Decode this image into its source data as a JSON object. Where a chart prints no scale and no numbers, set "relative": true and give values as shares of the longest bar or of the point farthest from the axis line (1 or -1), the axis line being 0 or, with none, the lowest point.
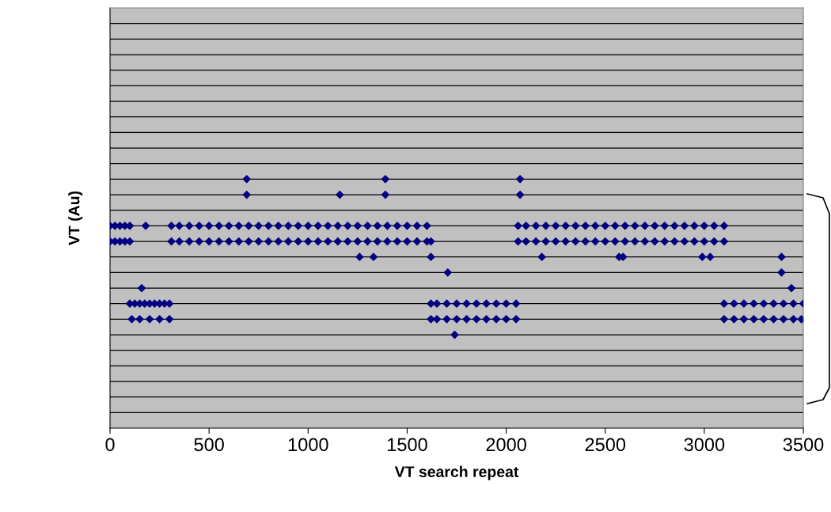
{
  "chart_data": {
    "type": "scatter",
    "xlabel": "VT search repeat",
    "ylabel": "VT (Au)",
    "relative": true,
    "xlim": [
      0,
      3500
    ],
    "xticks": [
      0,
      500,
      1000,
      1500,
      2000,
      2500,
      3000,
      3500
    ],
    "grid": "y",
    "marker": "diamond",
    "series": [
      {
        "color": "#000080",
        "x": [
          0,
          25,
          50,
          75,
          100,
          180,
          310,
          350,
          400,
          450,
          500,
          550,
          600,
          650,
          700,
          750,
          800,
          850,
          900,
          950,
          1000,
          1050,
          1100,
          1150,
          1200,
          1250,
          1300,
          1350,
          1400,
          1450,
          1500,
          1550,
          1600,
          2060,
          2100,
          2150,
          2200,
          2250,
          2300,
          2350,
          2400,
          2450,
          2500,
          2550,
          2600,
          2650,
          2700,
          2750,
          2800,
          2850,
          2900,
          2950,
          3000,
          3050,
          3100
        ],
        "values": [
          0.8125,
          0.8125,
          0.8125,
          0.8125,
          0.8125,
          0.8125,
          0.8125,
          0.8125,
          0.8125,
          0.8125,
          0.8125,
          0.8125,
          0.8125,
          0.8125,
          0.8125,
          0.8125,
          0.8125,
          0.8125,
          0.8125,
          0.8125,
          0.8125,
          0.8125,
          0.8125,
          0.8125,
          0.8125,
          0.8125,
          0.8125,
          0.8125,
          0.8125,
          0.8125,
          0.8125,
          0.8125,
          0.8125,
          0.8125,
          0.8125,
          0.8125,
          0.8125,
          0.8125,
          0.8125,
          0.8125,
          0.8125,
          0.8125,
          0.8125,
          0.8125,
          0.8125,
          0.8125,
          0.8125,
          0.8125,
          0.8125,
          0.8125,
          0.8125,
          0.8125,
          0.8125,
          0.8125,
          0.8125
        ]
      },
      {
        "color": "#000080",
        "x": [
          0,
          25,
          50,
          75,
          100,
          310,
          350,
          400,
          450,
          500,
          550,
          600,
          650,
          700,
          750,
          800,
          850,
          900,
          950,
          1000,
          1050,
          1100,
          1150,
          1200,
          1250,
          1300,
          1350,
          1400,
          1450,
          1500,
          1550,
          1600,
          1620,
          2060,
          2100,
          2150,
          2200,
          2250,
          2300,
          2350,
          2400,
          2450,
          2500,
          2550,
          2600,
          2650,
          2700,
          2750,
          2800,
          2850,
          2900,
          2950,
          3000,
          3050,
          3100
        ],
        "values": [
          0.75,
          0.75,
          0.75,
          0.75,
          0.75,
          0.75,
          0.75,
          0.75,
          0.75,
          0.75,
          0.75,
          0.75,
          0.75,
          0.75,
          0.75,
          0.75,
          0.75,
          0.75,
          0.75,
          0.75,
          0.75,
          0.75,
          0.75,
          0.75,
          0.75,
          0.75,
          0.75,
          0.75,
          0.75,
          0.75,
          0.75,
          0.75,
          0.75,
          0.75,
          0.75,
          0.75,
          0.75,
          0.75,
          0.75,
          0.75,
          0.75,
          0.75,
          0.75,
          0.75,
          0.75,
          0.75,
          0.75,
          0.75,
          0.75,
          0.75,
          0.75,
          0.75,
          0.75,
          0.75,
          0.75
        ]
      },
      {
        "color": "#000080",
        "x": [
          100,
          125,
          150,
          175,
          200,
          225,
          250,
          275,
          300,
          1620,
          1650,
          1700,
          1750,
          1800,
          1850,
          1900,
          1950,
          2000,
          2050,
          3100,
          3150,
          3200,
          3250,
          3300,
          3350,
          3400,
          3450,
          3500
        ],
        "values": [
          0.5,
          0.5,
          0.5,
          0.5,
          0.5,
          0.5,
          0.5,
          0.5,
          0.5,
          0.5,
          0.5,
          0.5,
          0.5,
          0.5,
          0.5,
          0.5,
          0.5,
          0.5,
          0.5,
          0.5,
          0.5,
          0.5,
          0.5,
          0.5,
          0.5,
          0.5,
          0.5,
          0.5
        ]
      },
      {
        "color": "#000080",
        "x": [
          110,
          150,
          200,
          250,
          300,
          1620,
          1650,
          1700,
          1750,
          1800,
          1850,
          1900,
          1950,
          2000,
          2050,
          3100,
          3150,
          3200,
          3250,
          3300,
          3350,
          3400,
          3450,
          3490
        ],
        "values": [
          0.4375,
          0.4375,
          0.4375,
          0.4375,
          0.4375,
          0.4375,
          0.4375,
          0.4375,
          0.4375,
          0.4375,
          0.4375,
          0.4375,
          0.4375,
          0.4375,
          0.4375,
          0.4375,
          0.4375,
          0.4375,
          0.4375,
          0.4375,
          0.4375,
          0.4375,
          0.4375,
          0.4375
        ]
      },
      {
        "color": "#000080",
        "x": [
          160,
          690,
          690,
          1160,
          1390,
          1390,
          1260,
          1330,
          1620,
          1705,
          1740,
          2070,
          2070,
          2180,
          2570,
          2590,
          2990,
          3030,
          3390,
          3390,
          3440
        ],
        "values": [
          0.5625,
          1,
          0.9375,
          0.9375,
          1,
          0.9375,
          0.6875,
          0.6875,
          0.6875,
          0.625,
          0.375,
          1,
          0.9375,
          0.6875,
          0.6875,
          0.6875,
          0.6875,
          0.6875,
          0.6875,
          0.625,
          0.5625
        ]
      }
    ]
  }
}
